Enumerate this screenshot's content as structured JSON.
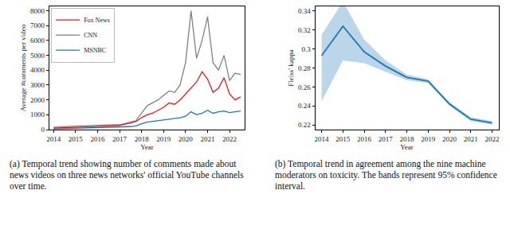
{
  "chart_data": [
    {
      "type": "line",
      "caption": "(a) Temporal trend showing number of comments made about news videos on three news networks' official YouTube channels over time.",
      "x_label": "Year",
      "y_label": "Average #comments per video",
      "x": [
        2014,
        2014.25,
        2014.5,
        2014.75,
        2015,
        2015.25,
        2015.5,
        2015.75,
        2016,
        2016.25,
        2016.5,
        2016.75,
        2017,
        2017.25,
        2017.5,
        2017.75,
        2018,
        2018.25,
        2018.5,
        2018.75,
        2019,
        2019.25,
        2019.5,
        2019.75,
        2020,
        2020.25,
        2020.5,
        2020.75,
        2021,
        2021.25,
        2021.5,
        2021.75,
        2022,
        2022.25,
        2022.5
      ],
      "series": [
        {
          "name": "MSNBC",
          "color": "#1f77b4",
          "values": [
            50,
            60,
            70,
            80,
            80,
            90,
            100,
            100,
            110,
            120,
            130,
            130,
            140,
            150,
            200,
            250,
            400,
            500,
            550,
            600,
            650,
            700,
            750,
            800,
            900,
            1200,
            1000,
            1100,
            1300,
            1100,
            1200,
            1250,
            1150,
            1200,
            1250
          ]
        },
        {
          "name": "CNN",
          "color": "#808080",
          "values": [
            150,
            180,
            200,
            220,
            230,
            250,
            270,
            260,
            280,
            300,
            350,
            330,
            320,
            400,
            500,
            600,
            1100,
            1600,
            1800,
            2000,
            2300,
            2600,
            2500,
            3000,
            4500,
            8000,
            4800,
            6000,
            7600,
            4500,
            4000,
            5000,
            3300,
            3800,
            3700
          ]
        },
        {
          "name": "Fox News",
          "color": "#e41a1c",
          "values": [
            100,
            120,
            130,
            140,
            150,
            170,
            180,
            190,
            200,
            220,
            250,
            260,
            280,
            350,
            450,
            550,
            800,
            1000,
            1100,
            1300,
            1500,
            1800,
            1700,
            2000,
            2400,
            2800,
            3200,
            3900,
            3400,
            2500,
            2800,
            3500,
            2400,
            2000,
            2200
          ]
        }
      ],
      "xlim": [
        2013.8,
        2022.7
      ],
      "xticks": [
        2014,
        2015,
        2016,
        2017,
        2018,
        2019,
        2020,
        2021,
        2022
      ],
      "ylim": [
        0,
        8300
      ],
      "yticks": [
        0,
        1000,
        2000,
        3000,
        4000,
        5000,
        6000,
        7000,
        8000
      ],
      "legend": "upper left"
    },
    {
      "type": "line",
      "caption": "(b) Temporal trend in agreement among the nine machine moderators on toxicity. The bands represent 95% confidence interval.",
      "x_label": "Year",
      "y_label": "Fleiss' kappa",
      "x": [
        2014,
        2015,
        2016,
        2017,
        2018,
        2019,
        2020,
        2021,
        2022
      ],
      "series": [
        {
          "color": "#1f77b4",
          "values": [
            0.293,
            0.324,
            0.297,
            0.282,
            0.27,
            0.266,
            0.242,
            0.226,
            0.222
          ],
          "ci_lower": [
            0.245,
            0.288,
            0.285,
            0.276,
            0.267,
            0.264,
            0.24,
            0.224,
            0.22
          ],
          "ci_upper": [
            0.315,
            0.35,
            0.31,
            0.288,
            0.273,
            0.268,
            0.244,
            0.228,
            0.224
          ]
        }
      ],
      "xlim": [
        2013.7,
        2022.3
      ],
      "xticks": [
        2014,
        2015,
        2016,
        2017,
        2018,
        2019,
        2020,
        2021,
        2022
      ],
      "ylim": [
        0.215,
        0.345
      ],
      "yticks": [
        0.22,
        0.24,
        0.26,
        0.28,
        0.3,
        0.32,
        0.34
      ]
    }
  ]
}
